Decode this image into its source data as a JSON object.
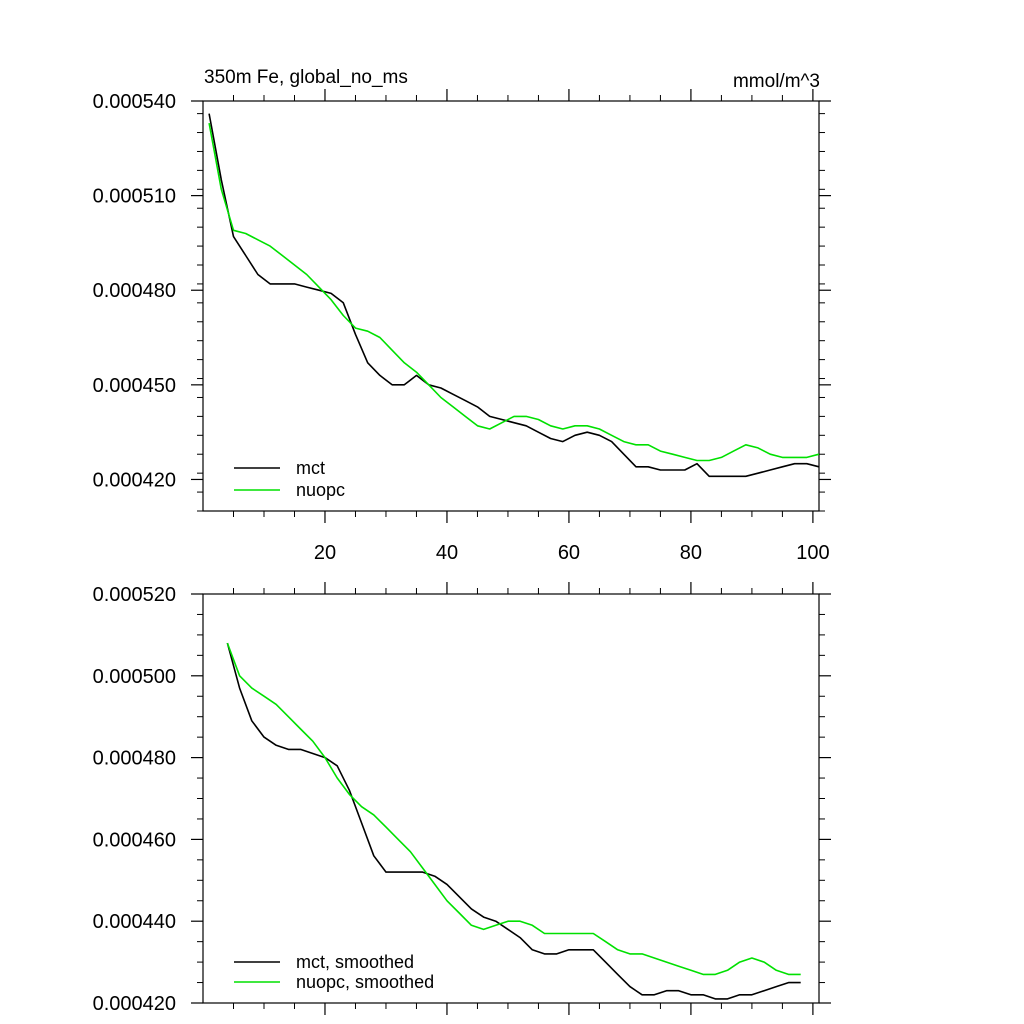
{
  "chart_data": [
    {
      "type": "line",
      "title": "350m Fe, global_no_ms",
      "units": "mmol/m^3",
      "xlabel": "",
      "ylabel": "",
      "xlim": [
        0,
        101
      ],
      "ylim": [
        0.00041,
        0.00054
      ],
      "xticks": [
        20,
        40,
        60,
        80,
        100
      ],
      "xtick_labels": [
        "20",
        "40",
        "60",
        "80",
        "100"
      ],
      "yticks": [
        0.00042,
        0.00045,
        0.00048,
        0.00051,
        0.00054
      ],
      "ytick_labels": [
        "0.000420",
        "0.000450",
        "0.000480",
        "0.000510",
        "0.000540"
      ],
      "legend_position": "bottom-left",
      "series": [
        {
          "name": "mct",
          "color": "#000000",
          "x": [
            1,
            3,
            5,
            7,
            9,
            11,
            13,
            15,
            17,
            19,
            21,
            23,
            25,
            27,
            29,
            31,
            33,
            35,
            37,
            39,
            41,
            43,
            45,
            47,
            49,
            51,
            53,
            55,
            57,
            59,
            61,
            63,
            65,
            67,
            69,
            71,
            73,
            75,
            77,
            79,
            81,
            83,
            85,
            87,
            89,
            91,
            93,
            95,
            97,
            99,
            101
          ],
          "values": [
            0.000536,
            0.000515,
            0.000497,
            0.000491,
            0.000485,
            0.000482,
            0.000482,
            0.000482,
            0.000481,
            0.00048,
            0.000479,
            0.000476,
            0.000466,
            0.000457,
            0.000453,
            0.00045,
            0.00045,
            0.000453,
            0.00045,
            0.000449,
            0.000447,
            0.000445,
            0.000443,
            0.00044,
            0.000439,
            0.000438,
            0.000437,
            0.000435,
            0.000433,
            0.000432,
            0.000434,
            0.000435,
            0.000434,
            0.000432,
            0.000428,
            0.000424,
            0.000424,
            0.000423,
            0.000423,
            0.000423,
            0.000425,
            0.000421,
            0.000421,
            0.000421,
            0.000421,
            0.000422,
            0.000423,
            0.000424,
            0.000425,
            0.000425,
            0.000424
          ]
        },
        {
          "name": "nuopc",
          "color": "#00e000",
          "x": [
            1,
            3,
            5,
            7,
            9,
            11,
            13,
            15,
            17,
            19,
            21,
            23,
            25,
            27,
            29,
            31,
            33,
            35,
            37,
            39,
            41,
            43,
            45,
            47,
            49,
            51,
            53,
            55,
            57,
            59,
            61,
            63,
            65,
            67,
            69,
            71,
            73,
            75,
            77,
            79,
            81,
            83,
            85,
            87,
            89,
            91,
            93,
            95,
            97,
            99,
            101
          ],
          "values": [
            0.000533,
            0.000512,
            0.000499,
            0.000498,
            0.000496,
            0.000494,
            0.000491,
            0.000488,
            0.000485,
            0.000481,
            0.000477,
            0.000472,
            0.000468,
            0.000467,
            0.000465,
            0.000461,
            0.000457,
            0.000454,
            0.00045,
            0.000446,
            0.000443,
            0.00044,
            0.000437,
            0.000436,
            0.000438,
            0.00044,
            0.00044,
            0.000439,
            0.000437,
            0.000436,
            0.000437,
            0.000437,
            0.000436,
            0.000434,
            0.000432,
            0.000431,
            0.000431,
            0.000429,
            0.000428,
            0.000427,
            0.000426,
            0.000426,
            0.000427,
            0.000429,
            0.000431,
            0.00043,
            0.000428,
            0.000427,
            0.000427,
            0.000427,
            0.000428
          ]
        }
      ]
    },
    {
      "type": "line",
      "title": "",
      "xlabel": "",
      "ylabel": "",
      "xlim": [
        0,
        101
      ],
      "ylim": [
        0.00042,
        0.00052
      ],
      "xticks": [
        20,
        40,
        60,
        80,
        100
      ],
      "xtick_labels": [],
      "yticks": [
        0.00042,
        0.00044,
        0.00046,
        0.00048,
        0.0005,
        0.00052
      ],
      "ytick_labels": [
        "0.000420",
        "0.000440",
        "0.000460",
        "0.000480",
        "0.000500",
        "0.000520"
      ],
      "legend_position": "bottom-left",
      "series": [
        {
          "name": "mct, smoothed",
          "color": "#000000",
          "x": [
            4,
            6,
            8,
            10,
            12,
            14,
            16,
            18,
            20,
            22,
            24,
            26,
            28,
            30,
            32,
            34,
            36,
            38,
            40,
            42,
            44,
            46,
            48,
            50,
            52,
            54,
            56,
            58,
            60,
            62,
            64,
            66,
            68,
            70,
            72,
            74,
            76,
            78,
            80,
            82,
            84,
            86,
            88,
            90,
            92,
            94,
            96,
            98
          ],
          "values": [
            0.000508,
            0.000497,
            0.000489,
            0.000485,
            0.000483,
            0.000482,
            0.000482,
            0.000481,
            0.00048,
            0.000478,
            0.000472,
            0.000464,
            0.000456,
            0.000452,
            0.000452,
            0.000452,
            0.000452,
            0.000451,
            0.000449,
            0.000446,
            0.000443,
            0.000441,
            0.00044,
            0.000438,
            0.000436,
            0.000433,
            0.000432,
            0.000432,
            0.000433,
            0.000433,
            0.000433,
            0.00043,
            0.000427,
            0.000424,
            0.000422,
            0.000422,
            0.000423,
            0.000423,
            0.000422,
            0.000422,
            0.000421,
            0.000421,
            0.000422,
            0.000422,
            0.000423,
            0.000424,
            0.000425,
            0.000425
          ]
        },
        {
          "name": "nuopc, smoothed",
          "color": "#00e000",
          "x": [
            4,
            6,
            8,
            10,
            12,
            14,
            16,
            18,
            20,
            22,
            24,
            26,
            28,
            30,
            32,
            34,
            36,
            38,
            40,
            42,
            44,
            46,
            48,
            50,
            52,
            54,
            56,
            58,
            60,
            62,
            64,
            66,
            68,
            70,
            72,
            74,
            76,
            78,
            80,
            82,
            84,
            86,
            88,
            90,
            92,
            94,
            96,
            98
          ],
          "values": [
            0.000508,
            0.0005,
            0.000497,
            0.000495,
            0.000493,
            0.00049,
            0.000487,
            0.000484,
            0.00048,
            0.000475,
            0.000471,
            0.000468,
            0.000466,
            0.000463,
            0.00046,
            0.000457,
            0.000453,
            0.000449,
            0.000445,
            0.000442,
            0.000439,
            0.000438,
            0.000439,
            0.00044,
            0.00044,
            0.000439,
            0.000437,
            0.000437,
            0.000437,
            0.000437,
            0.000437,
            0.000435,
            0.000433,
            0.000432,
            0.000432,
            0.000431,
            0.00043,
            0.000429,
            0.000428,
            0.000427,
            0.000427,
            0.000428,
            0.00043,
            0.000431,
            0.00043,
            0.000428,
            0.000427,
            0.000427
          ]
        }
      ]
    }
  ]
}
